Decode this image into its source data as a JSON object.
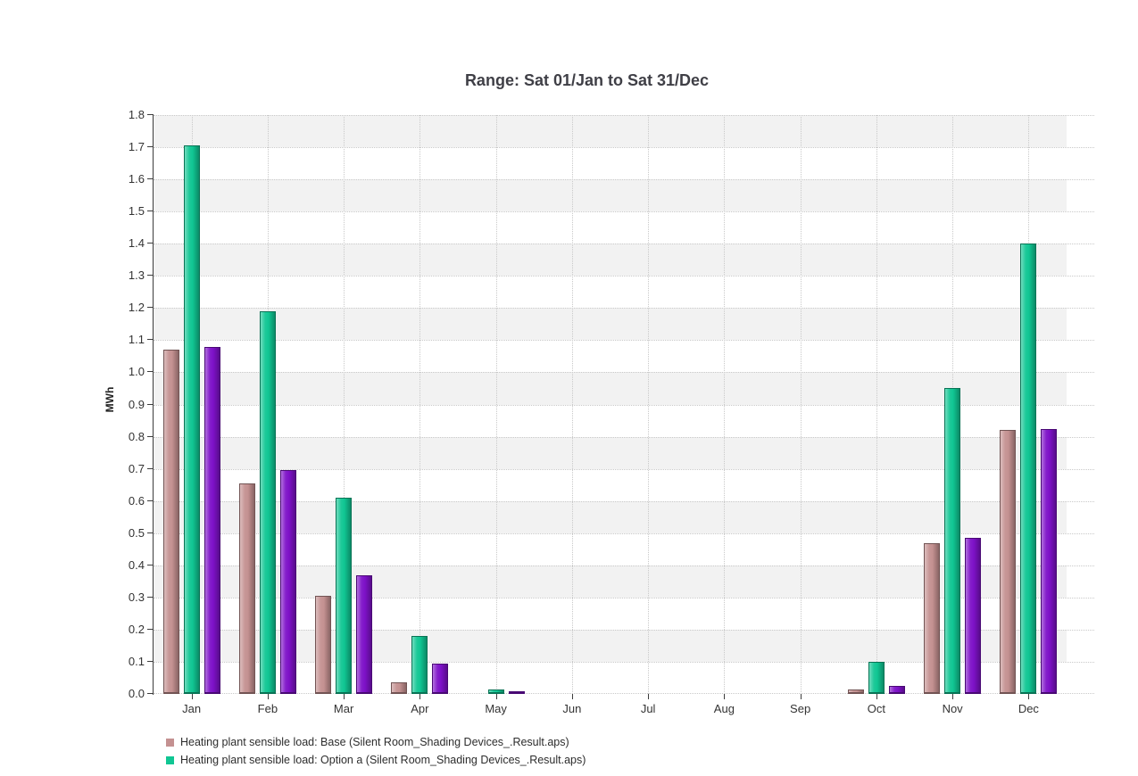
{
  "chart_data": {
    "type": "bar",
    "title": "Range: Sat 01/Jan to Sat 31/Dec",
    "ylabel": "MWh",
    "ylim": [
      0,
      1.8
    ],
    "ytick_step": 0.1,
    "grid": "dotted",
    "background_bands": "alternating",
    "legend_position": "bottom-left",
    "categories": [
      "Jan",
      "Feb",
      "Mar",
      "Apr",
      "May",
      "Jun",
      "Jul",
      "Aug",
      "Sep",
      "Oct",
      "Nov",
      "Dec"
    ],
    "series": [
      {
        "key": "base",
        "label": "Heating plant sensible load: Base (Silent Room_Shading Devices_.Result.aps)",
        "color": "#c49191",
        "in_legend": true,
        "values": [
          1.07,
          0.655,
          0.305,
          0.035,
          0,
          0,
          0,
          0,
          0,
          0.015,
          0.47,
          0.82
        ]
      },
      {
        "key": "option-a",
        "label": "Heating plant sensible load: Option a (Silent Room_Shading Devices_.Result.aps)",
        "color": "#10c693",
        "in_legend": true,
        "values": [
          1.705,
          1.19,
          0.61,
          0.18,
          0.015,
          0,
          0,
          0,
          0,
          0.1,
          0.95,
          1.4
        ]
      },
      {
        "key": "series-3",
        "color": "#7e11c8",
        "in_legend": false,
        "values": [
          1.08,
          0.695,
          0.37,
          0.095,
          0.005,
          0,
          0,
          0,
          0,
          0.025,
          0.485,
          0.825
        ]
      }
    ],
    "colors": {
      "band_gray": "#f2f2f2",
      "gridline": "#c9c9c9",
      "axis": "#3c3c3c",
      "title_text": "#3f3f46",
      "label_text": "#333333"
    }
  }
}
